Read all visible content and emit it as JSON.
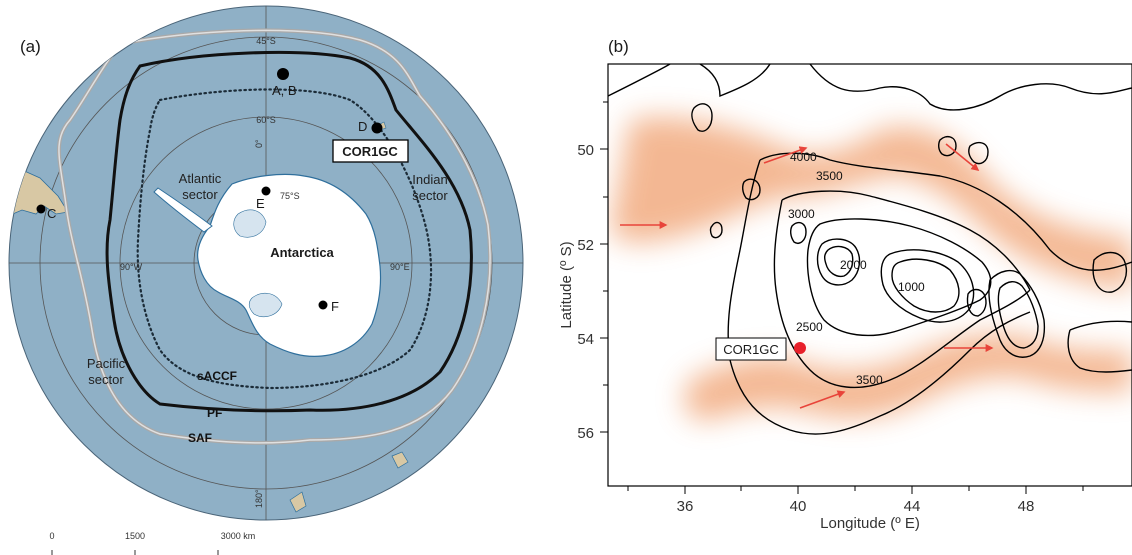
{
  "panel_a": {
    "label": "(a)",
    "lat_labels": [
      "45°S",
      "60°S",
      "75°S"
    ],
    "lon_labels": [
      "0°",
      "90°W",
      "90°E",
      "180°"
    ],
    "continent": "Antarctica",
    "sectors": [
      "Atlantic",
      "sector",
      "Indian",
      "sector",
      "Pacific",
      "sector"
    ],
    "fronts": [
      "sACCF",
      "PF",
      "SAF"
    ],
    "sites": [
      "A, B",
      "C",
      "D",
      "E",
      "F"
    ],
    "core_box": "COR1GC",
    "scale_values": [
      "0",
      "1500",
      "3000 km"
    ],
    "colors": {
      "ocean": "#8fb0c6",
      "land": "#ffffff",
      "coast": "#2f6f9c",
      "graticule": "#555555"
    }
  },
  "panel_b": {
    "label": "(b)",
    "core_box": "COR1GC",
    "contour_labels": [
      "4000",
      "3500",
      "3000",
      "2000",
      "1000",
      "2500",
      "3500"
    ],
    "xlabel": "Longitude (º E)",
    "ylabel": "Latitude (º S)",
    "x_ticks": [
      "36",
      "40",
      "44",
      "48"
    ],
    "y_ticks": [
      "50",
      "52",
      "54",
      "56"
    ],
    "core_site": {
      "lon": 40.0,
      "lat": -54.3
    },
    "colors": {
      "current": "#f0a070",
      "arrow": "#e8443a",
      "contour": "#000000",
      "site": "#e8202a"
    }
  }
}
